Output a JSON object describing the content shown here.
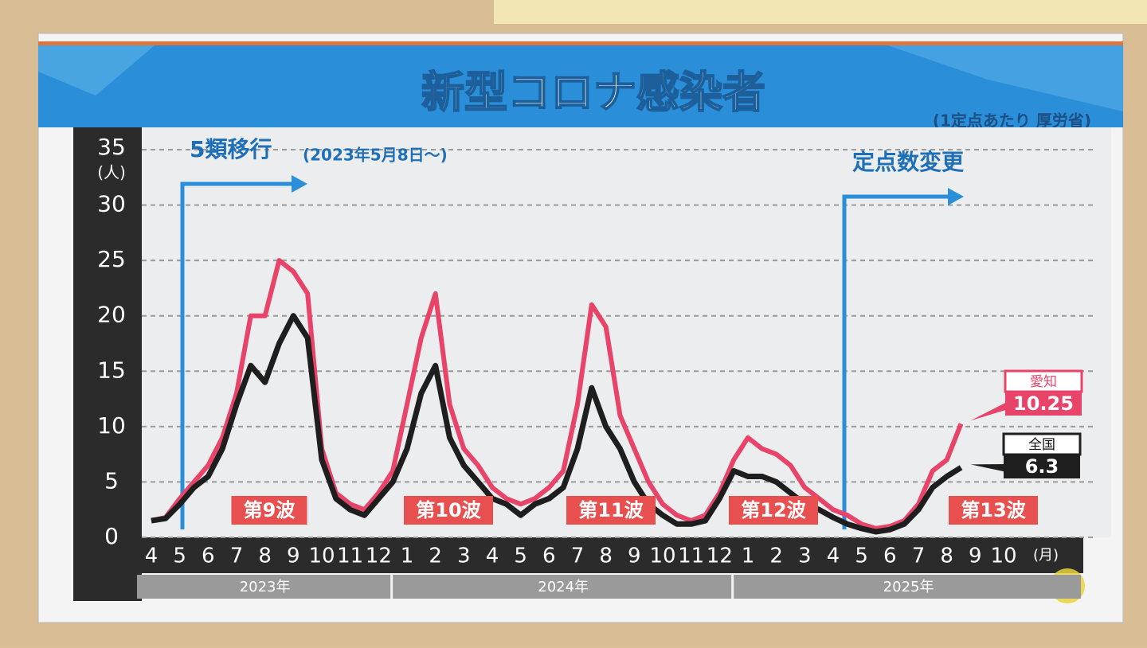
{
  "chart_data": {
    "type": "line",
    "title": "新型コロナ感染者",
    "subtitle": "(1定点あたり 厚労省)",
    "y_unit": "(人)",
    "x_unit": "(月)",
    "annotations": {
      "transition": "5類移行",
      "transition_date": "(2023年5月8日～)",
      "change": "定点数変更",
      "waves": [
        "第9波",
        "第10波",
        "第11波",
        "第12波",
        "第13波"
      ]
    },
    "years": [
      "2023年",
      "2024年",
      "2025年"
    ],
    "categories": [
      "4",
      null,
      "5",
      null,
      "6",
      null,
      "7",
      null,
      "8",
      null,
      "9",
      null,
      "10",
      null,
      "11",
      null,
      "12",
      null,
      "1",
      null,
      "2",
      null,
      "3",
      null,
      "4",
      null,
      "5",
      null,
      "6",
      null,
      "7",
      null,
      "8",
      null,
      "9",
      null,
      "10",
      null,
      "11",
      null,
      "12",
      null,
      "1",
      null,
      "2",
      null,
      "3",
      null,
      "4",
      null,
      "5",
      null,
      "6",
      null,
      "7",
      null,
      "8",
      null,
      "9",
      null,
      "10"
    ],
    "ylim": [
      0,
      35
    ],
    "yticks": [
      0,
      5,
      10,
      15,
      20,
      25,
      30,
      35
    ],
    "grid": true,
    "series": [
      {
        "name": "愛知",
        "color": "#e8446a",
        "values": [
          1.5,
          1.8,
          3.5,
          5,
          6.5,
          9,
          13,
          20,
          20,
          25,
          24,
          22,
          8,
          4,
          3,
          2.5,
          4,
          6,
          12,
          18,
          22,
          12,
          8,
          6.5,
          4.5,
          3.5,
          3,
          3.5,
          4.5,
          6,
          12,
          21,
          19,
          11,
          8,
          5,
          3,
          2,
          1.5,
          2,
          4,
          7,
          9,
          8,
          7.5,
          6.5,
          4.5,
          3.5,
          2.5,
          2,
          1.2,
          0.8,
          1.0,
          1.5,
          3,
          6,
          7,
          10.25,
          null,
          null,
          null
        ],
        "value_labels": {
          "57": "10.25"
        }
      },
      {
        "name": "全国",
        "color": "#1e1e1e",
        "values": [
          1.5,
          1.7,
          3,
          4.5,
          5.5,
          8,
          12,
          15.5,
          14,
          17.5,
          20,
          18,
          7,
          3.5,
          2.5,
          2,
          3.5,
          5,
          8,
          13,
          15.5,
          9,
          6.5,
          5,
          3.5,
          3,
          2,
          3,
          3.5,
          4.5,
          8,
          13.5,
          10,
          8,
          5,
          3,
          2,
          1.2,
          1.2,
          1.5,
          3.5,
          6,
          5.5,
          5.5,
          5,
          4,
          3,
          2.5,
          1.8,
          1.2,
          0.8,
          0.5,
          0.7,
          1.2,
          2.5,
          4.5,
          5.5,
          6.3,
          null,
          null,
          null
        ],
        "value_labels": {
          "57": "6.3"
        }
      }
    ]
  }
}
